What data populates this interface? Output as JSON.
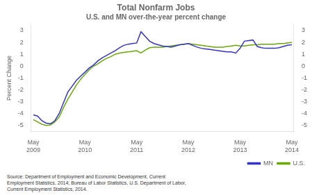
{
  "chart_data": {
    "type": "line",
    "title": "Total Nonfarm Jobs",
    "subtitle": "U.S. and MN over-the-year percent change",
    "ylabel": "Percent Change",
    "annotations": [
      "Source: Department of Employment and Economic Development, Current\nEmployment Statistics, 2014; Bureau of Labor Statistics, U.S. Department of Labor,\nCurrent Employment Statistics, 2014."
    ],
    "categories": [
      "May\n2009",
      null,
      null,
      null,
      null,
      null,
      null,
      null,
      null,
      null,
      null,
      null,
      "May\n2010",
      null,
      null,
      null,
      null,
      null,
      null,
      null,
      null,
      null,
      null,
      null,
      "May\n2011",
      null,
      null,
      null,
      null,
      null,
      null,
      null,
      null,
      null,
      null,
      null,
      "May\n2012",
      null,
      null,
      null,
      null,
      null,
      null,
      null,
      null,
      null,
      null,
      null,
      "May\n2013",
      null,
      null,
      null,
      null,
      null,
      null,
      null,
      null,
      null,
      null,
      null,
      "May\n2014"
    ],
    "series": [
      {
        "name": "MN",
        "color": "#3333cc",
        "values": [
          -4.1,
          -4.2,
          -4.6,
          -4.8,
          -4.85,
          -4.6,
          -4.0,
          -3.1,
          -2.2,
          -1.7,
          -1.2,
          -0.85,
          -0.5,
          -0.15,
          0.1,
          0.45,
          0.7,
          0.9,
          1.1,
          1.3,
          1.55,
          1.75,
          1.85,
          1.9,
          1.95,
          2.9,
          2.5,
          2.1,
          1.9,
          1.8,
          1.7,
          1.65,
          1.6,
          1.7,
          1.8,
          1.85,
          1.9,
          1.75,
          1.6,
          1.5,
          1.45,
          1.4,
          1.35,
          1.3,
          1.25,
          1.2,
          1.2,
          1.1,
          1.5,
          2.1,
          2.15,
          2.2,
          1.65,
          1.55,
          1.5,
          1.5,
          1.5,
          1.55,
          1.65,
          1.75,
          1.8
        ]
      },
      {
        "name": "U.S.",
        "color": "#66aa00",
        "values": [
          -4.5,
          -4.7,
          -4.9,
          -5.0,
          -4.95,
          -4.7,
          -4.3,
          -3.5,
          -2.8,
          -2.2,
          -1.6,
          -1.1,
          -0.7,
          -0.3,
          -0.0,
          0.2,
          0.45,
          0.65,
          0.8,
          1.0,
          1.1,
          1.15,
          1.2,
          1.25,
          1.3,
          1.1,
          1.35,
          1.55,
          1.6,
          1.6,
          1.6,
          1.65,
          1.7,
          1.75,
          1.8,
          1.85,
          1.9,
          1.85,
          1.8,
          1.75,
          1.7,
          1.65,
          1.6,
          1.6,
          1.6,
          1.65,
          1.7,
          1.75,
          1.7,
          1.7,
          1.75,
          1.8,
          1.8,
          1.85,
          1.85,
          1.85,
          1.85,
          1.9,
          1.9,
          1.95,
          2.0
        ]
      }
    ],
    "ylim": [
      -5.5,
      3.5
    ],
    "yticks": [
      -5,
      -4,
      -3,
      -2,
      -1,
      0,
      1,
      2,
      3
    ],
    "y2lim": [
      -5.5,
      3.5
    ],
    "y2ticks": [
      -5,
      -4,
      -3,
      -2,
      -1,
      0,
      1,
      2,
      3
    ],
    "grid": false,
    "legend": "lower right"
  }
}
